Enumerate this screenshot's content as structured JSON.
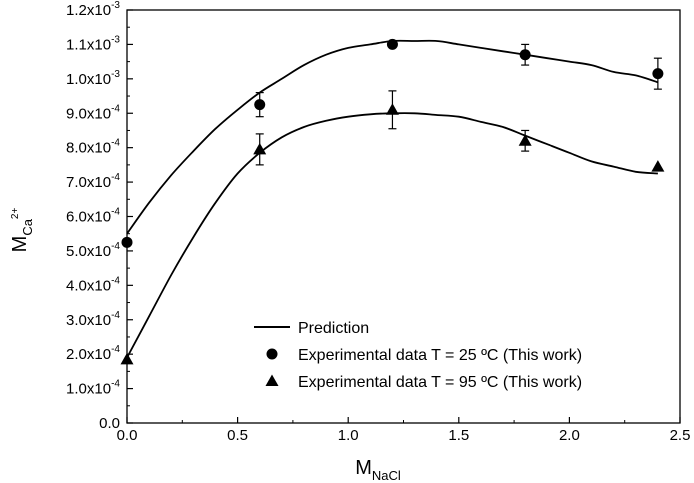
{
  "chart_data": {
    "type": "scatter",
    "xlabel": "M",
    "xlabel_sub": "NaCl",
    "ylabel": "M",
    "ylabel_sub": "Ca",
    "ylabel_sup": "2+",
    "xlim": [
      0,
      2.5
    ],
    "ylim": [
      0,
      0.0012
    ],
    "x_ticks": [
      "0.0",
      "0.5",
      "1.0",
      "1.5",
      "2.0",
      "2.5"
    ],
    "y_ticks": [
      {
        "value": 0.0,
        "mant": "0.0",
        "exp": ""
      },
      {
        "value": 0.0001,
        "mant": "1.0x10",
        "exp": "-4"
      },
      {
        "value": 0.0002,
        "mant": "2.0x10",
        "exp": "-4"
      },
      {
        "value": 0.0003,
        "mant": "3.0x10",
        "exp": "-4"
      },
      {
        "value": 0.0004,
        "mant": "4.0x10",
        "exp": "-4"
      },
      {
        "value": 0.0005,
        "mant": "5.0x10",
        "exp": "-4"
      },
      {
        "value": 0.0006,
        "mant": "6.0x10",
        "exp": "-4"
      },
      {
        "value": 0.0007,
        "mant": "7.0x10",
        "exp": "-4"
      },
      {
        "value": 0.0008,
        "mant": "8.0x10",
        "exp": "-4"
      },
      {
        "value": 0.0009,
        "mant": "9.0x10",
        "exp": "-4"
      },
      {
        "value": 0.001,
        "mant": "1.0x10",
        "exp": "-3"
      },
      {
        "value": 0.0011,
        "mant": "1.1x10",
        "exp": "-3"
      },
      {
        "value": 0.0012,
        "mant": "1.2x10",
        "exp": "-3"
      }
    ],
    "legend": [
      "Prediction",
      "Experimental data T = 25 ºC (This work)",
      "Experimental data T = 95 ºC (This work)"
    ],
    "legend_position": "bottom-right",
    "grid": false,
    "series": [
      {
        "name": "Experimental data T = 25 ºC (This work)",
        "marker": "circle",
        "x": [
          0.0,
          0.6,
          1.2,
          1.8,
          2.4
        ],
        "y": [
          0.000525,
          0.000925,
          0.0011,
          0.00107,
          0.001015
        ],
        "err": [
          0,
          3.5e-05,
          0,
          3e-05,
          4.5e-05
        ]
      },
      {
        "name": "Experimental data T = 95 ºC (This work)",
        "marker": "triangle",
        "x": [
          0.0,
          0.6,
          1.2,
          1.8,
          2.4
        ],
        "y": [
          0.000185,
          0.000795,
          0.00091,
          0.00082,
          0.000745
        ],
        "err": [
          0,
          4.5e-05,
          5.5e-05,
          3e-05,
          0
        ]
      },
      {
        "name": "Prediction",
        "line_for": "25",
        "x": [
          0.0,
          0.1,
          0.2,
          0.3,
          0.4,
          0.5,
          0.6,
          0.7,
          0.8,
          0.9,
          1.0,
          1.1,
          1.2,
          1.3,
          1.4,
          1.5,
          1.6,
          1.7,
          1.8,
          1.9,
          2.0,
          2.1,
          2.2,
          2.3,
          2.4
        ],
        "y": [
          0.00055,
          0.00064,
          0.00072,
          0.00079,
          0.000855,
          0.00091,
          0.00096,
          0.001,
          0.00104,
          0.00107,
          0.00109,
          0.0011,
          0.00111,
          0.00111,
          0.00111,
          0.0011,
          0.00109,
          0.00108,
          0.00107,
          0.00106,
          0.00105,
          0.00104,
          0.00102,
          0.00101,
          0.00099
        ]
      },
      {
        "name": "Prediction",
        "line_for": "95",
        "x": [
          0.0,
          0.1,
          0.2,
          0.3,
          0.4,
          0.5,
          0.6,
          0.7,
          0.8,
          0.9,
          1.0,
          1.1,
          1.2,
          1.3,
          1.4,
          1.5,
          1.6,
          1.7,
          1.8,
          1.9,
          2.0,
          2.1,
          2.2,
          2.3,
          2.4
        ],
        "y": [
          0.00019,
          0.00031,
          0.00043,
          0.00054,
          0.00064,
          0.000725,
          0.000785,
          0.00083,
          0.00086,
          0.000878,
          0.00089,
          0.000897,
          0.0009,
          0.0009,
          0.000895,
          0.00089,
          0.000875,
          0.00086,
          0.000835,
          0.00081,
          0.000785,
          0.00076,
          0.000745,
          0.00073,
          0.000725
        ]
      }
    ]
  }
}
